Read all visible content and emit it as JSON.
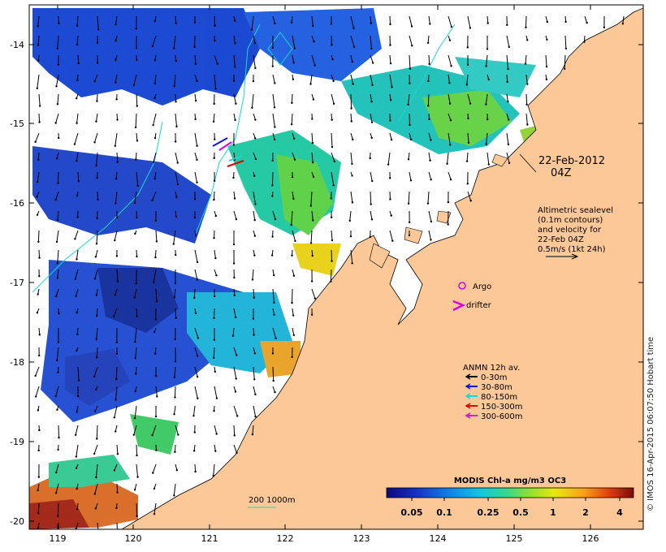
{
  "map": {
    "longitudes": [
      "119",
      "120",
      "121",
      "122",
      "123",
      "124",
      "125",
      "126"
    ],
    "latitudes": [
      "-14",
      "-15",
      "-16",
      "-17",
      "-18",
      "-19",
      "-20"
    ],
    "date_label": "22-Feb-2012",
    "time_label": "04Z",
    "altimetry_lines": [
      "Altimetric sealevel",
      "(0.1m contours)",
      "and velocity for",
      "22-Feb 04Z",
      "0.5m/s (1kt 24h)"
    ],
    "argo_label": "Argo",
    "drifter_label": "drifter",
    "anmn": {
      "title": "ANMN 12h av.",
      "items": [
        {
          "label": "0-30m",
          "color": "#000000"
        },
        {
          "label": "30-80m",
          "color": "#1010e0"
        },
        {
          "label": "80-150m",
          "color": "#18d8d0"
        },
        {
          "label": "150-300m",
          "color": "#e00000"
        },
        {
          "label": "300-600m",
          "color": "#e000e0"
        }
      ]
    },
    "colorbar": {
      "title": "MODIS Chl-a mg/m3 OC3",
      "ticks": [
        "0.05",
        "0.1",
        "0.25",
        "0.5",
        "1",
        "2",
        "4"
      ]
    },
    "depth_label": "200 1000m",
    "stamp": "© IMOS 16-Apr-2015 06:07:50 Hobart time",
    "colors": {
      "land": "#fcc898",
      "argo": "#e000e0",
      "drifter": "#e000e0",
      "contour": "#18d8d0"
    }
  }
}
